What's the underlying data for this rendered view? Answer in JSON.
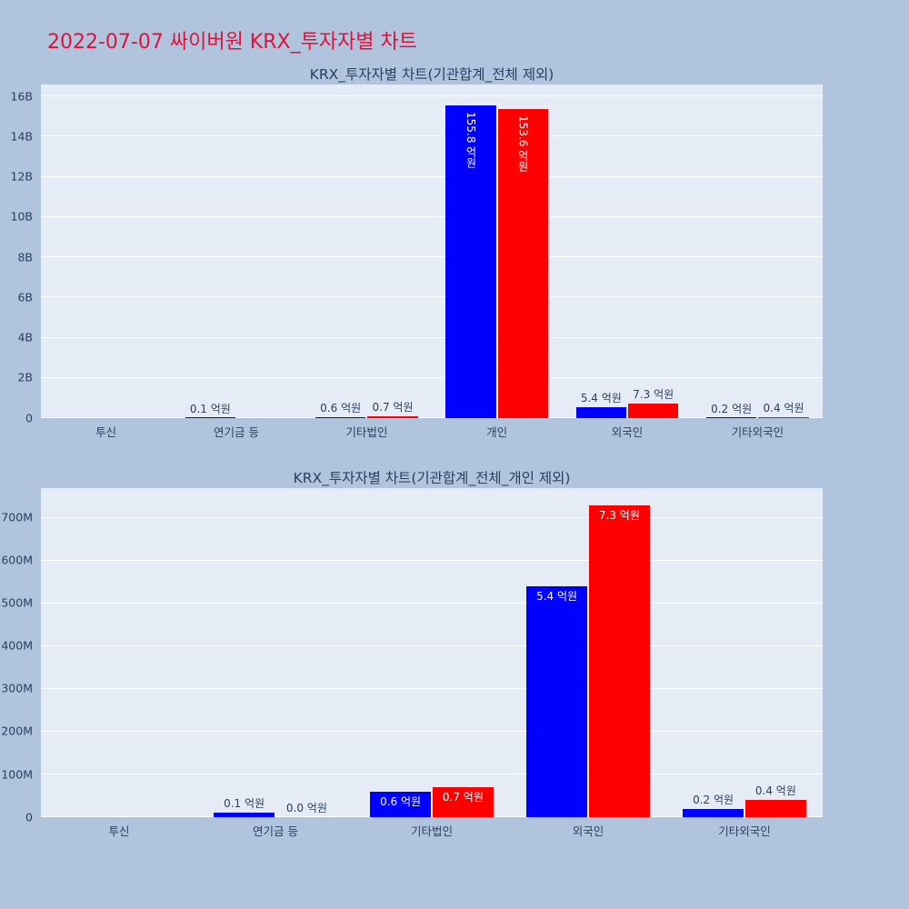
{
  "page_title": "2022-07-07 싸이버원 KRX_투자자별 차트",
  "colors": {
    "page_bg": "#b0c4de",
    "plot_bg": "#e5ecf6",
    "grid": "#ffffff",
    "text": "#2a3f5f",
    "title": "#dc143c"
  },
  "chart_data": [
    {
      "type": "bar",
      "title": "KRX_투자자별 차트(기관합계_전체 제외)",
      "unit": "억원",
      "grid": true,
      "legend": "none",
      "inside_labels_vertical": true,
      "categories": [
        "투신",
        "연기금 등",
        "기타법인",
        "개인",
        "외국인",
        "기타외국인"
      ],
      "series": [
        {
          "name": "series-blue",
          "color": "#0000ff",
          "values_eokwon": [
            null,
            0.1,
            0.6,
            155.8,
            5.4,
            0.2
          ],
          "labels": [
            "",
            "0.1 억원",
            "0.6 억원",
            "155.8 억원",
            "5.4 억원",
            "0.2 억원"
          ]
        },
        {
          "name": "series-red",
          "color": "#ff0000",
          "values_eokwon": [
            null,
            0.0,
            0.7,
            153.6,
            7.3,
            0.4
          ],
          "labels": [
            "",
            "",
            "0.7 억원",
            "153.6 억원",
            "7.3 억원",
            "0.4 억원"
          ]
        }
      ],
      "ylim": [
        0,
        16600000000
      ],
      "yticks": [
        {
          "label": "0",
          "value": 0
        },
        {
          "label": "2B",
          "value": 2000000000
        },
        {
          "label": "4B",
          "value": 4000000000
        },
        {
          "label": "6B",
          "value": 6000000000
        },
        {
          "label": "8B",
          "value": 8000000000
        },
        {
          "label": "10B",
          "value": 10000000000
        },
        {
          "label": "12B",
          "value": 12000000000
        },
        {
          "label": "14B",
          "value": 14000000000
        },
        {
          "label": "16B",
          "value": 16000000000
        }
      ]
    },
    {
      "type": "bar",
      "title": "KRX_투자자별 차트(기관합계_전체_개인 제외)",
      "unit": "억원",
      "grid": true,
      "legend": "none",
      "inside_labels_vertical": false,
      "categories": [
        "투신",
        "연기금 등",
        "기타법인",
        "외국인",
        "기타외국인"
      ],
      "series": [
        {
          "name": "series-blue",
          "color": "#0000ff",
          "values_eokwon": [
            null,
            0.1,
            0.6,
            5.4,
            0.2
          ],
          "labels": [
            "",
            "0.1 억원",
            "0.6 억원",
            "5.4 억원",
            "0.2 억원"
          ]
        },
        {
          "name": "series-red",
          "color": "#ff0000",
          "values_eokwon": [
            null,
            0.0,
            0.7,
            7.3,
            0.4
          ],
          "labels": [
            "",
            "0.0 억원",
            "0.7 억원",
            "7.3 억원",
            "0.4 억원"
          ]
        }
      ],
      "ylim": [
        0,
        770000000
      ],
      "yticks": [
        {
          "label": "0",
          "value": 0
        },
        {
          "label": "100M",
          "value": 100000000
        },
        {
          "label": "200M",
          "value": 200000000
        },
        {
          "label": "300M",
          "value": 300000000
        },
        {
          "label": "400M",
          "value": 400000000
        },
        {
          "label": "500M",
          "value": 500000000
        },
        {
          "label": "600M",
          "value": 600000000
        },
        {
          "label": "700M",
          "value": 700000000
        }
      ]
    }
  ]
}
